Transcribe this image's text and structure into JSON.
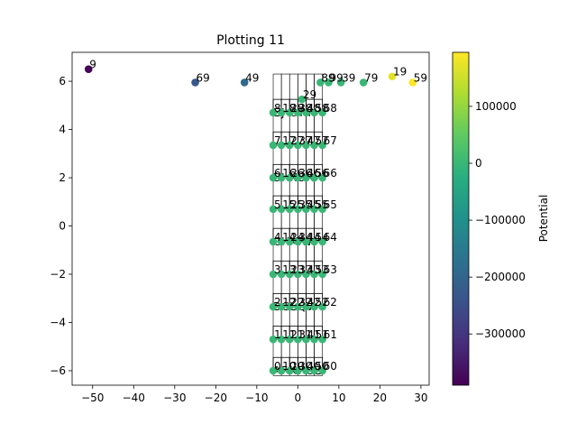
{
  "chart_data": {
    "type": "scatter",
    "title": "Plotting 11",
    "xlabel": "",
    "ylabel": "",
    "xlim": [
      -55,
      32
    ],
    "ylim": [
      -6.6,
      7.2
    ],
    "xticks": [
      -50,
      -40,
      -30,
      -20,
      -10,
      0,
      10,
      20,
      30
    ],
    "yticks": [
      -6,
      -4,
      -2,
      0,
      2,
      4,
      6
    ],
    "xtick_labels": [
      "−50",
      "−40",
      "−30",
      "−20",
      "−10",
      "0",
      "10",
      "20",
      "30"
    ],
    "ytick_labels": [
      "−6",
      "−4",
      "−2",
      "0",
      "2",
      "4",
      "6"
    ],
    "grid": false,
    "colormap": "viridis",
    "colorbar": {
      "label": "Potential",
      "range": [
        -390000,
        195000
      ],
      "ticks": [
        100000,
        0,
        -100000,
        -200000,
        -300000
      ],
      "tick_labels": [
        "100000",
        "0",
        "−100000",
        "−200000",
        "−300000"
      ]
    },
    "points": [
      {
        "label": "9",
        "x": -51,
        "y": 6.5,
        "v": -385000
      },
      {
        "label": "69",
        "x": -25,
        "y": 5.95,
        "v": -230000
      },
      {
        "label": "49",
        "x": -13,
        "y": 5.95,
        "v": -190000
      },
      {
        "label": "29",
        "x": 1,
        "y": 5.25,
        "v": 0
      },
      {
        "label": "89",
        "x": 5.5,
        "y": 5.95,
        "v": 0
      },
      {
        "label": "99",
        "x": 7.5,
        "y": 5.95,
        "v": 0
      },
      {
        "label": "39",
        "x": 10.5,
        "y": 5.95,
        "v": 0
      },
      {
        "label": "79",
        "x": 16,
        "y": 5.95,
        "v": 0
      },
      {
        "label": "19",
        "x": 23,
        "y": 6.2,
        "v": 170000
      },
      {
        "label": "59",
        "x": 28,
        "y": 5.95,
        "v": 195000
      },
      {
        "label": "8",
        "x": -6,
        "y": 4.7,
        "v": 0
      },
      {
        "label": "18",
        "x": -4,
        "y": 4.7,
        "v": 0
      },
      {
        "label": "28",
        "x": -2,
        "y": 4.7,
        "v": 0
      },
      {
        "label": "38",
        "x": 0,
        "y": 4.7,
        "v": 0
      },
      {
        "label": "48",
        "x": 2,
        "y": 4.7,
        "v": 0
      },
      {
        "label": "58",
        "x": 4,
        "y": 4.7,
        "v": 0
      },
      {
        "label": "68",
        "x": 6,
        "y": 4.7,
        "v": 0
      },
      {
        "label": "7",
        "x": -6,
        "y": 3.35,
        "v": 0
      },
      {
        "label": "17",
        "x": -4,
        "y": 3.35,
        "v": 0
      },
      {
        "label": "27",
        "x": -2,
        "y": 3.35,
        "v": 0
      },
      {
        "label": "37",
        "x": 0,
        "y": 3.35,
        "v": 0
      },
      {
        "label": "47",
        "x": 2,
        "y": 3.35,
        "v": 0
      },
      {
        "label": "57",
        "x": 4,
        "y": 3.35,
        "v": 0
      },
      {
        "label": "67",
        "x": 6,
        "y": 3.35,
        "v": 0
      },
      {
        "label": "6",
        "x": -6,
        "y": 2.0,
        "v": 0
      },
      {
        "label": "16",
        "x": -4,
        "y": 2.0,
        "v": 0
      },
      {
        "label": "26",
        "x": -2,
        "y": 2.0,
        "v": 0
      },
      {
        "label": "36",
        "x": 0,
        "y": 2.0,
        "v": 0
      },
      {
        "label": "46",
        "x": 2,
        "y": 2.0,
        "v": 0
      },
      {
        "label": "56",
        "x": 4,
        "y": 2.0,
        "v": 0
      },
      {
        "label": "66",
        "x": 6,
        "y": 2.0,
        "v": 0
      },
      {
        "label": "5",
        "x": -6,
        "y": 0.7,
        "v": 0
      },
      {
        "label": "15",
        "x": -4,
        "y": 0.7,
        "v": 0
      },
      {
        "label": "25",
        "x": -2,
        "y": 0.7,
        "v": 0
      },
      {
        "label": "35",
        "x": 0,
        "y": 0.7,
        "v": 0
      },
      {
        "label": "45",
        "x": 2,
        "y": 0.7,
        "v": 0
      },
      {
        "label": "55",
        "x": 4,
        "y": 0.7,
        "v": 0
      },
      {
        "label": "65",
        "x": 6,
        "y": 0.7,
        "v": 0
      },
      {
        "label": "4",
        "x": -6,
        "y": -0.65,
        "v": 0
      },
      {
        "label": "14",
        "x": -4,
        "y": -0.65,
        "v": 0
      },
      {
        "label": "24",
        "x": -2,
        "y": -0.65,
        "v": 0
      },
      {
        "label": "34",
        "x": 0,
        "y": -0.65,
        "v": 0
      },
      {
        "label": "44",
        "x": 2,
        "y": -0.65,
        "v": 0
      },
      {
        "label": "54",
        "x": 4,
        "y": -0.65,
        "v": 0
      },
      {
        "label": "64",
        "x": 6,
        "y": -0.65,
        "v": 0
      },
      {
        "label": "3",
        "x": -6,
        "y": -2.0,
        "v": 0
      },
      {
        "label": "13",
        "x": -4,
        "y": -2.0,
        "v": 0
      },
      {
        "label": "23",
        "x": -2,
        "y": -2.0,
        "v": 0
      },
      {
        "label": "33",
        "x": 0,
        "y": -2.0,
        "v": 0
      },
      {
        "label": "43",
        "x": 2,
        "y": -2.0,
        "v": 0
      },
      {
        "label": "53",
        "x": 4,
        "y": -2.0,
        "v": 0
      },
      {
        "label": "63",
        "x": 6,
        "y": -2.0,
        "v": 0
      },
      {
        "label": "2",
        "x": -6,
        "y": -3.35,
        "v": 0
      },
      {
        "label": "12",
        "x": -4,
        "y": -3.35,
        "v": 0
      },
      {
        "label": "22",
        "x": -2,
        "y": -3.35,
        "v": 0
      },
      {
        "label": "32",
        "x": 0,
        "y": -3.35,
        "v": 0
      },
      {
        "label": "42",
        "x": 2,
        "y": -3.35,
        "v": 0
      },
      {
        "label": "52",
        "x": 4,
        "y": -3.35,
        "v": 0
      },
      {
        "label": "62",
        "x": 6,
        "y": -3.35,
        "v": 0
      },
      {
        "label": "1",
        "x": -6,
        "y": -4.7,
        "v": 0
      },
      {
        "label": "11",
        "x": -4,
        "y": -4.7,
        "v": 0
      },
      {
        "label": "21",
        "x": -2,
        "y": -4.7,
        "v": 0
      },
      {
        "label": "31",
        "x": 0,
        "y": -4.7,
        "v": 0
      },
      {
        "label": "41",
        "x": 2,
        "y": -4.7,
        "v": 0
      },
      {
        "label": "51",
        "x": 4,
        "y": -4.7,
        "v": 0
      },
      {
        "label": "61",
        "x": 6,
        "y": -4.7,
        "v": 0
      },
      {
        "label": "0",
        "x": -6,
        "y": -6.0,
        "v": 0
      },
      {
        "label": "10",
        "x": -4,
        "y": -6.0,
        "v": 0
      },
      {
        "label": "20",
        "x": -2,
        "y": -6.0,
        "v": 0
      },
      {
        "label": "30",
        "x": 0,
        "y": -6.0,
        "v": 0
      },
      {
        "label": "40",
        "x": 2,
        "y": -6.0,
        "v": 0
      },
      {
        "label": "50",
        "x": 4,
        "y": -6.0,
        "v": 0
      },
      {
        "label": "60",
        "x": 6,
        "y": -6.0,
        "v": 0
      }
    ],
    "annotations": [
      {
        "text": "A",
        "x": -6,
        "y": -6.0
      },
      {
        "text": "F",
        "x": -4,
        "y": -6.0
      },
      {
        "text": "K",
        "x": -2,
        "y": -6.0
      },
      {
        "text": "P",
        "x": 0,
        "y": -6.0
      },
      {
        "text": "U",
        "x": 2,
        "y": -6.0
      },
      {
        "text": "Z",
        "x": 4,
        "y": -6.0
      },
      {
        "text": "B",
        "x": -6,
        "y": -3.35
      },
      {
        "text": "G",
        "x": -4,
        "y": -3.35
      },
      {
        "text": "L",
        "x": -2,
        "y": -3.35
      },
      {
        "text": "Q",
        "x": 0,
        "y": -3.35
      },
      {
        "text": "V",
        "x": 2,
        "y": -3.35
      },
      {
        "text": "C",
        "x": -6,
        "y": -0.65
      },
      {
        "text": "H",
        "x": -4,
        "y": -0.65
      },
      {
        "text": "M",
        "x": -2,
        "y": -0.65
      },
      {
        "text": "R",
        "x": 0,
        "y": -0.65
      },
      {
        "text": "W",
        "x": 2,
        "y": -0.65
      },
      {
        "text": "D",
        "x": -6,
        "y": 2.0
      },
      {
        "text": "I",
        "x": -4,
        "y": 2.0
      },
      {
        "text": "N",
        "x": -2,
        "y": 2.0
      },
      {
        "text": "S",
        "x": 0,
        "y": 2.0
      },
      {
        "text": "X",
        "x": 2,
        "y": 2.0
      },
      {
        "text": "E",
        "x": -6,
        "y": 4.7
      },
      {
        "text": "J",
        "x": -4,
        "y": 4.7
      },
      {
        "text": "O",
        "x": -2,
        "y": 4.7
      },
      {
        "text": "T",
        "x": 0,
        "y": 4.7
      },
      {
        "text": "Y",
        "x": 2,
        "y": 4.7
      }
    ]
  }
}
